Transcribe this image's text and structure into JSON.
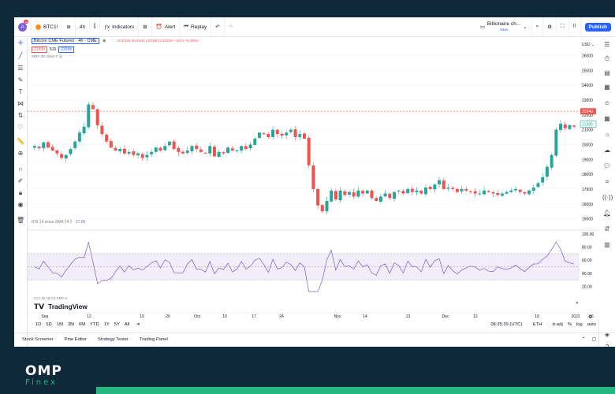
{
  "toolbar": {
    "avatar_letter": "A",
    "avatar_badge": "11",
    "symbol": "BTC1!",
    "interval": "4h",
    "indicators": "Indicators",
    "alert": "Alert",
    "replay": "Replay",
    "layout_name": "Billionaire ch...",
    "layout_sub": "Save",
    "publish": "Publish"
  },
  "legend": {
    "title": "Bitcoin CME Futures · 4h · CME",
    "ohlc": "O22345 H22440 L22160 C22240 −110 (−0.49%)",
    "bid": "21990",
    "spread": "515",
    "ask": "22505",
    "sma_label": "SMA 30 close 0",
    "rsi_label": "RSI 14 close SMA 14 2",
    "rsi_value": "37.06",
    "cci_label": "CCI 20 HLC3 SMA 5"
  },
  "price_axis": {
    "currency": "USD",
    "ticks": [
      "26000",
      "25000",
      "24000",
      "23000",
      "22000",
      "21000",
      "20000",
      "19000",
      "18000",
      "17000",
      "16000",
      "15000"
    ],
    "last_price": "22240",
    "current_price": "21385"
  },
  "rsi_axis": {
    "ticks": [
      "100.00",
      "80.00",
      "60.00",
      "40.00",
      "20.00"
    ]
  },
  "time_axis": {
    "ticks": [
      "Sep",
      "12",
      "19",
      "26",
      "Oct",
      "10",
      "17",
      "24",
      "Nov",
      "14",
      "21",
      "Dec",
      "12",
      "19",
      "2023",
      "16"
    ]
  },
  "watermark": "TradingView",
  "bottom": {
    "ranges": [
      "1D",
      "5D",
      "1M",
      "3M",
      "6M",
      "YTD",
      "1Y",
      "5Y",
      "All"
    ],
    "clock": "08:35:39 (UTC)",
    "session": "ETH",
    "adj": "b-adj",
    "pct": "%",
    "log": "log",
    "auto": "auto"
  },
  "footer_tabs": [
    "Stock Screener",
    "Pine Editor",
    "Strategy Tester",
    "Trading Panel"
  ],
  "brand": {
    "name": "OMP",
    "sub": "Finex"
  },
  "colors": {
    "up": "#26a69a",
    "down": "#ef5350",
    "rsi": "#7e57c2",
    "accent": "#2962ff",
    "brand_green": "#26b884"
  },
  "chart_data": {
    "type": "candlestick",
    "price_range": [
      14500,
      26500
    ],
    "series_close": [
      19900,
      19750,
      20150,
      19800,
      19600,
      19400,
      19100,
      19300,
      19700,
      20200,
      20800,
      21200,
      22700,
      22400,
      21300,
      20700,
      20200,
      19800,
      19600,
      19700,
      19400,
      19500,
      19300,
      19400,
      19100,
      19300,
      19500,
      19800,
      19600,
      19900,
      20200,
      19700,
      19500,
      19400,
      19600,
      19900,
      19700,
      19500,
      19400,
      19900,
      19200,
      19500,
      19400,
      19800,
      19600,
      19600,
      19900,
      19700,
      20000,
      20400,
      20800,
      20700,
      20500,
      21000,
      20700,
      20600,
      20800,
      21000,
      20500,
      20700,
      20400,
      18600,
      17000,
      15900,
      15500,
      16200,
      16900,
      16300,
      16900,
      16600,
      16800,
      16500,
      16900,
      16700,
      16900,
      16400,
      16200,
      16500,
      16700,
      16400,
      16800,
      16900,
      16700,
      17000,
      16800,
      16900,
      16700,
      17100,
      17000,
      17300,
      17600,
      17000,
      17100,
      17000,
      16800,
      17000,
      16900,
      16800,
      16700,
      16700,
      16900,
      16800,
      16700,
      16600,
      16700,
      16800,
      16900,
      17000,
      16800,
      16700,
      16900,
      17100,
      17400,
      17800,
      18500,
      19300,
      21000,
      21400,
      21100,
      21300,
      21200
    ],
    "rsi_range": [
      0,
      100
    ],
    "rsi_levels": [
      70,
      50,
      30
    ]
  }
}
